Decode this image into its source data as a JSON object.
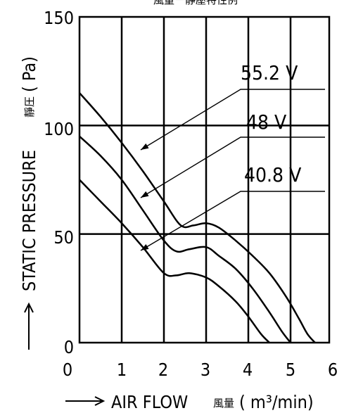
{
  "chart_data": {
    "type": "line",
    "title": "風量－靜壓特性例",
    "xlabel": "AIR FLOW",
    "xlabel_cjk": "風量",
    "xunit": "( m³/min)",
    "ylabel": "STATIC PRESSURE",
    "ylabel_cjk": "靜圧",
    "yunit": "( Pa)",
    "xlim": [
      0,
      6
    ],
    "ylim": [
      0,
      150
    ],
    "x_ticks": [
      "1",
      "2",
      "3",
      "4",
      "5",
      "6"
    ],
    "x_zero_label": "0",
    "y_ticks": [
      "0",
      "50",
      "100",
      "150"
    ],
    "grid": true,
    "series": [
      {
        "name": "55.2 V",
        "x": [
          0,
          0.5,
          1.0,
          1.5,
          2.0,
          2.4,
          2.7,
          3.0,
          3.3,
          3.7,
          4.1,
          4.5,
          4.9,
          5.2,
          5.4,
          5.58
        ],
        "y": [
          115,
          104,
          92,
          79,
          65,
          54,
          54,
          55,
          53,
          47,
          40,
          32,
          21,
          11,
          4,
          0
        ]
      },
      {
        "name": "48 V",
        "x": [
          0,
          0.5,
          1.0,
          1.5,
          2.0,
          2.3,
          2.6,
          3.0,
          3.3,
          3.7,
          4.1,
          4.5,
          4.8,
          5.0
        ],
        "y": [
          95,
          86,
          75,
          61,
          47,
          42,
          43,
          44,
          40,
          34,
          25,
          14,
          5,
          0
        ]
      },
      {
        "name": "40.8 V",
        "x": [
          0,
          0.5,
          1.0,
          1.5,
          2.0,
          2.3,
          2.6,
          3.0,
          3.3,
          3.7,
          4.0,
          4.3,
          4.5
        ],
        "y": [
          75,
          65,
          55,
          44,
          32,
          31,
          32,
          30,
          26,
          19,
          12,
          4,
          0
        ]
      }
    ]
  }
}
